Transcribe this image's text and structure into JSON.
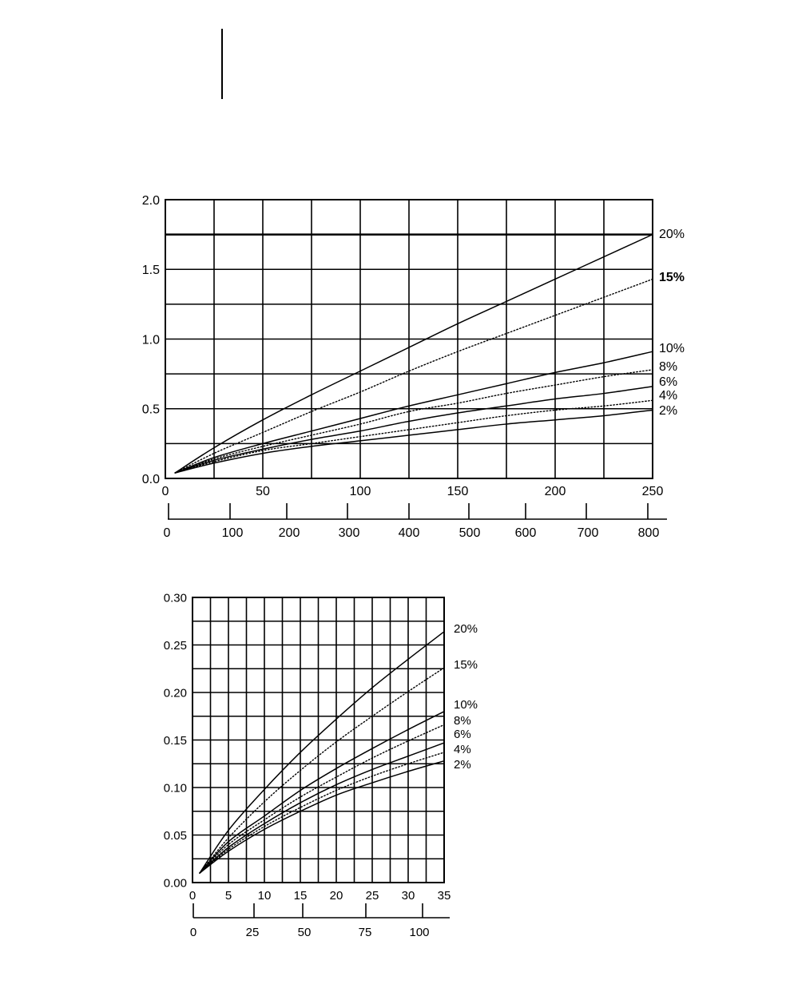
{
  "chart_data": [
    {
      "type": "line",
      "title": "",
      "xlabel": "",
      "ylabel": "",
      "xlim": [
        0,
        250
      ],
      "ylim": [
        0.0,
        2.0
      ],
      "x_ticks": [
        0,
        50,
        100,
        150,
        200,
        250
      ],
      "x_tick_labels": [
        "0",
        "50",
        "100",
        "150",
        "200",
        "250"
      ],
      "y_ticks": [
        0.0,
        0.5,
        1.0,
        1.5,
        2.0
      ],
      "y_tick_labels": [
        "0.0",
        "0.5",
        "1.0",
        "1.5",
        "2.0"
      ],
      "grid": true,
      "grid_x_step": 25,
      "grid_y_step": 0.25,
      "secondary_axis": {
        "range": [
          0,
          800
        ],
        "ticks": [
          0,
          100,
          200,
          300,
          400,
          500,
          600,
          700,
          800
        ],
        "tick_labels": [
          "0",
          "100",
          "200",
          "300",
          "400",
          "500",
          "600",
          "700",
          "800"
        ]
      },
      "reference_line": {
        "y": 1.75
      },
      "x": [
        5,
        25,
        50,
        75,
        100,
        125,
        150,
        175,
        200,
        225,
        250
      ],
      "series": [
        {
          "name": "20%",
          "style": "solid",
          "values": [
            0.04,
            0.22,
            0.42,
            0.6,
            0.77,
            0.94,
            1.11,
            1.27,
            1.43,
            1.59,
            1.75
          ]
        },
        {
          "name": "15%",
          "style": "dotted",
          "values": [
            0.04,
            0.18,
            0.33,
            0.48,
            0.62,
            0.77,
            0.91,
            1.04,
            1.17,
            1.3,
            1.43
          ]
        },
        {
          "name": "10%",
          "style": "solid",
          "values": [
            0.04,
            0.15,
            0.25,
            0.34,
            0.43,
            0.52,
            0.6,
            0.68,
            0.76,
            0.83,
            0.91
          ]
        },
        {
          "name": "8%",
          "style": "dotted",
          "values": [
            0.04,
            0.14,
            0.23,
            0.31,
            0.39,
            0.48,
            0.54,
            0.61,
            0.67,
            0.73,
            0.78
          ]
        },
        {
          "name": "6%",
          "style": "solid",
          "values": [
            0.04,
            0.13,
            0.21,
            0.28,
            0.34,
            0.41,
            0.47,
            0.52,
            0.57,
            0.61,
            0.66
          ]
        },
        {
          "name": "4%",
          "style": "dotted",
          "values": [
            0.04,
            0.12,
            0.2,
            0.25,
            0.3,
            0.35,
            0.4,
            0.45,
            0.49,
            0.52,
            0.56
          ]
        },
        {
          "name": "2%",
          "style": "solid",
          "values": [
            0.04,
            0.11,
            0.18,
            0.23,
            0.27,
            0.31,
            0.35,
            0.39,
            0.42,
            0.45,
            0.49
          ]
        }
      ]
    },
    {
      "type": "line",
      "title": "",
      "xlabel": "",
      "ylabel": "",
      "xlim": [
        0,
        35
      ],
      "ylim": [
        0.0,
        0.3
      ],
      "x_ticks": [
        0,
        5,
        10,
        15,
        20,
        25,
        30,
        35
      ],
      "x_tick_labels": [
        "0",
        "5",
        "10",
        "15",
        "20",
        "25",
        "30",
        "35"
      ],
      "y_ticks": [
        0.0,
        0.05,
        0.1,
        0.15,
        0.2,
        0.25,
        0.3
      ],
      "y_tick_labels": [
        "0.00",
        "0.05",
        "0.10",
        "0.15",
        "0.20",
        "0.25",
        "0.30"
      ],
      "grid": true,
      "grid_x_step": 2.5,
      "grid_y_step": 0.025,
      "secondary_axis": {
        "range": [
          0,
          110
        ],
        "ticks": [
          0,
          25,
          50,
          75,
          100
        ],
        "tick_labels": [
          "0",
          "25",
          "50",
          "75",
          "100"
        ]
      },
      "x": [
        1,
        5,
        10,
        15,
        20,
        25,
        30,
        35
      ],
      "series": [
        {
          "name": "20%",
          "style": "solid",
          "values": [
            0.01,
            0.055,
            0.098,
            0.137,
            0.172,
            0.205,
            0.235,
            0.264
          ]
        },
        {
          "name": "15%",
          "style": "dotted",
          "values": [
            0.01,
            0.047,
            0.085,
            0.118,
            0.148,
            0.175,
            0.201,
            0.226
          ]
        },
        {
          "name": "10%",
          "style": "solid",
          "values": [
            0.01,
            0.043,
            0.07,
            0.097,
            0.12,
            0.141,
            0.161,
            0.18
          ]
        },
        {
          "name": "8%",
          "style": "dotted",
          "values": [
            0.01,
            0.04,
            0.066,
            0.09,
            0.111,
            0.131,
            0.149,
            0.166
          ]
        },
        {
          "name": "6%",
          "style": "solid",
          "values": [
            0.01,
            0.037,
            0.062,
            0.084,
            0.103,
            0.119,
            0.133,
            0.147
          ]
        },
        {
          "name": "4%",
          "style": "dotted",
          "values": [
            0.01,
            0.035,
            0.059,
            0.079,
            0.097,
            0.112,
            0.125,
            0.137
          ]
        },
        {
          "name": "2%",
          "style": "solid",
          "values": [
            0.01,
            0.033,
            0.056,
            0.075,
            0.092,
            0.105,
            0.117,
            0.128
          ]
        }
      ]
    }
  ]
}
